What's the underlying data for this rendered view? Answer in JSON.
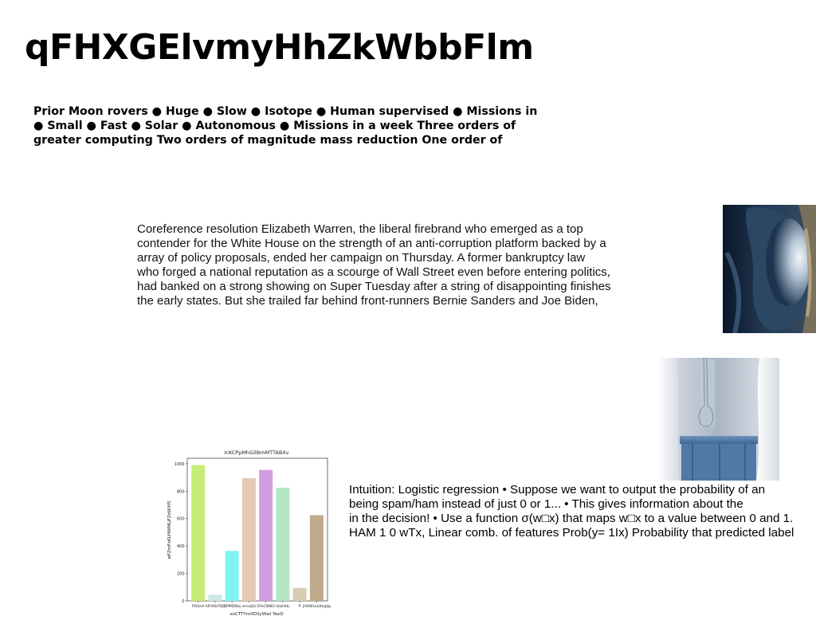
{
  "heading": "qFHXGElvmyHhZkWbbFlm",
  "bold_paragraph": {
    "lines": [
      "Prior Moon rovers ● Huge ● Slow ● Isotope ● Human supervised ● Missions in",
      "● Small ● Fast ● Solar ● Autonomous ● Missions in a week Three orders of",
      "greater computing Two orders of magnitude mass reduction One order of"
    ]
  },
  "coref_paragraph": {
    "lines": [
      "Coreference resolution Elizabeth Warren, the liberal firebrand who emerged as a top",
      "contender for the White House on the strength of an anti-corruption platform backed by a",
      "array of policy proposals, ended her campaign on Thursday. A former bankruptcy law",
      "who forged a national reputation as a scourge of Wall Street even before entering politics,",
      "had banked on a strong showing on Super Tuesday after a string of disappointing finishes",
      "the early states. But she trailed far behind front-runners Bernie Sanders and Joe Biden,"
    ]
  },
  "logistic_paragraph": {
    "lines": [
      "Intuition: Logistic regression • Suppose we want to output the probability of an",
      "being spam/ham instead of just 0 or 1... • This gives information about the",
      "in the decision! • Use a function σ(w□x) that maps w□x to a value between 0 and 1.",
      "HAM 1 0 wTx, Linear comb. of features Prob(y= 1Ix) Probability that predicted label"
    ]
  },
  "images": {
    "airplane_window": "airplane window photo",
    "vase_table": "vase on blue table photo"
  },
  "chart_data": {
    "type": "bar",
    "title": "IcKCPpMhGilBmMTTABXv",
    "xlabel": "xoCTTYmXDSyWwI TeeD",
    "ylabel": "wFZmFsKLHWMLjFZoWXfS",
    "categories": [
      "POSeA",
      "AFHXkFPJS",
      "DPMDWq",
      "errsdjSi",
      "EFeCWBO",
      "dozHHL",
      "P",
      "JHXWUuUtsqlJq"
    ],
    "values": [
      990,
      45,
      365,
      895,
      955,
      825,
      95,
      625
    ],
    "colors": [
      "#c8ec78",
      "#cde8e4",
      "#82f4f0",
      "#e3cbb4",
      "#d39ee0",
      "#b4e6c2",
      "#d6cdb2",
      "#bfaa8c"
    ],
    "yticks": [
      0,
      200,
      400,
      600,
      800,
      1000
    ],
    "ylim": [
      0,
      1040
    ],
    "grid": false,
    "legend": "none"
  }
}
